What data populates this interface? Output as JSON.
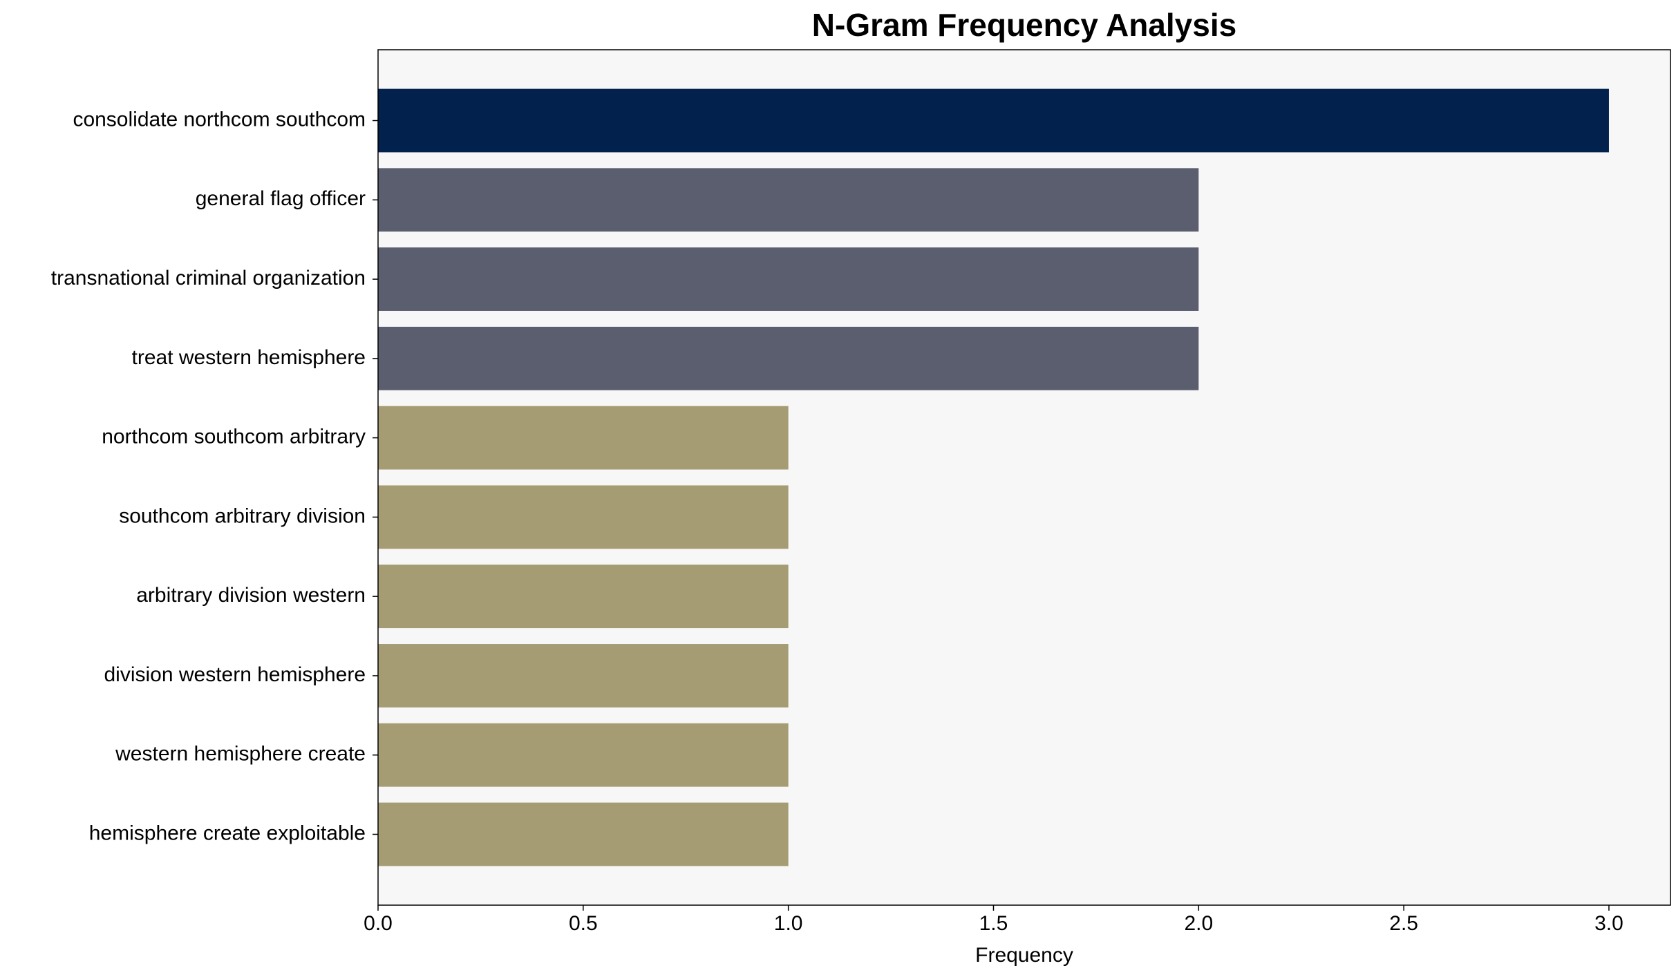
{
  "chart_data": {
    "type": "bar",
    "orientation": "horizontal",
    "title": "N-Gram Frequency Analysis",
    "xlabel": "Frequency",
    "categories": [
      "consolidate northcom southcom",
      "general flag officer",
      "transnational criminal organization",
      "treat western hemisphere",
      "northcom southcom arbitrary",
      "southcom arbitrary division",
      "arbitrary division western",
      "division western hemisphere",
      "western hemisphere create",
      "hemisphere create exploitable"
    ],
    "values": [
      3,
      2,
      2,
      2,
      1,
      1,
      1,
      1,
      1,
      1
    ],
    "colors": [
      "#02214c",
      "#5a5e6e",
      "#5a5e6e",
      "#5a5e6e",
      "#a59c74",
      "#a59c74",
      "#a59c74",
      "#a59c74",
      "#a59c74",
      "#a59c74"
    ],
    "xlim": [
      0,
      3.15
    ],
    "xticks": [
      {
        "value": 0,
        "label": "0.0"
      },
      {
        "value": 0.5,
        "label": "0.5"
      },
      {
        "value": 1,
        "label": "1.0"
      },
      {
        "value": 1.5,
        "label": "1.5"
      },
      {
        "value": 2,
        "label": "2.0"
      },
      {
        "value": 2.5,
        "label": "2.5"
      },
      {
        "value": 3,
        "label": "3.0"
      }
    ],
    "grid": false
  }
}
